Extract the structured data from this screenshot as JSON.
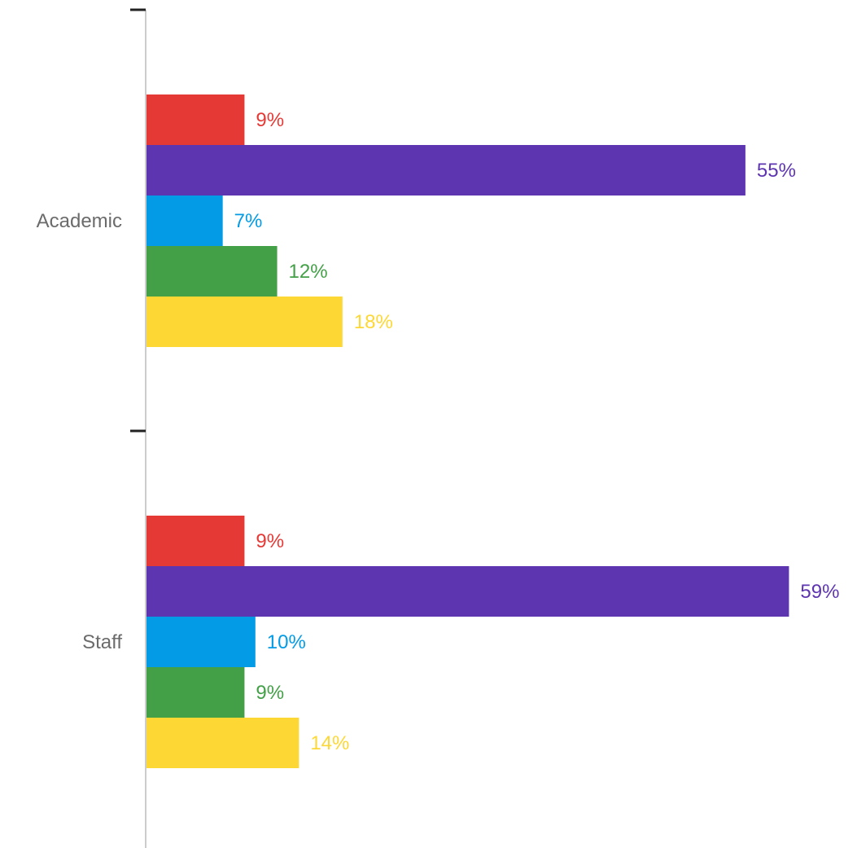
{
  "chart_data": {
    "type": "bar",
    "orientation": "horizontal",
    "categories": [
      "Academic",
      "Staff"
    ],
    "series": [
      {
        "color": "#e53935",
        "values": [
          9,
          9
        ],
        "labels": [
          "9%",
          "9%"
        ]
      },
      {
        "color": "#5e35b1",
        "values": [
          55,
          59
        ],
        "labels": [
          "55%",
          "59%"
        ]
      },
      {
        "color": "#039be5",
        "values": [
          7,
          10
        ],
        "labels": [
          "7%",
          "10%"
        ]
      },
      {
        "color": "#43a047",
        "values": [
          12,
          9
        ],
        "labels": [
          "12%",
          "9%"
        ]
      },
      {
        "color": "#fdd835",
        "values": [
          18,
          14
        ],
        "labels": [
          "18%",
          "14%"
        ]
      }
    ],
    "title": "",
    "xlabel": "",
    "ylabel": "",
    "xlim": [
      0,
      60
    ],
    "grid": false,
    "legend": "none"
  },
  "colors": {
    "axis": "#cccccc",
    "tick": "#222222",
    "category_text": "#6b6b6b"
  }
}
